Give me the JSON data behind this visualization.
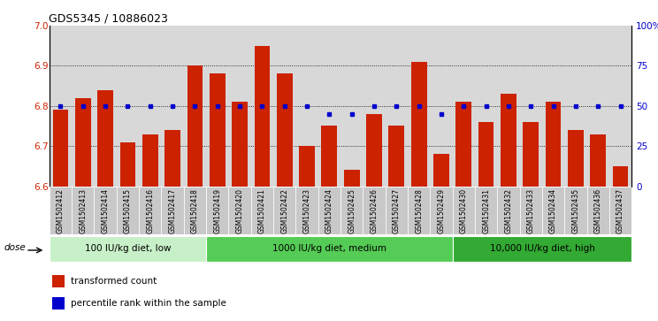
{
  "title": "GDS5345 / 10886023",
  "samples": [
    "GSM1502412",
    "GSM1502413",
    "GSM1502414",
    "GSM1502415",
    "GSM1502416",
    "GSM1502417",
    "GSM1502418",
    "GSM1502419",
    "GSM1502420",
    "GSM1502421",
    "GSM1502422",
    "GSM1502423",
    "GSM1502424",
    "GSM1502425",
    "GSM1502426",
    "GSM1502427",
    "GSM1502428",
    "GSM1502429",
    "GSM1502430",
    "GSM1502431",
    "GSM1502432",
    "GSM1502433",
    "GSM1502434",
    "GSM1502435",
    "GSM1502436",
    "GSM1502437"
  ],
  "bar_values": [
    6.79,
    6.82,
    6.84,
    6.71,
    6.73,
    6.74,
    6.9,
    6.88,
    6.81,
    6.95,
    6.88,
    6.7,
    6.75,
    6.64,
    6.78,
    6.75,
    6.91,
    6.68,
    6.81,
    6.76,
    6.83,
    6.76,
    6.81,
    6.74,
    6.73,
    6.65
  ],
  "percentile_values": [
    50,
    50,
    50,
    50,
    50,
    50,
    50,
    50,
    50,
    50,
    50,
    50,
    45,
    45,
    50,
    50,
    50,
    45,
    50,
    50,
    50,
    50,
    50,
    50,
    50,
    50
  ],
  "groups": [
    {
      "label": "100 IU/kg diet, low",
      "start": 0,
      "end": 6,
      "color": "#c8f0c8"
    },
    {
      "label": "1000 IU/kg diet, medium",
      "start": 7,
      "end": 17,
      "color": "#66dd66"
    },
    {
      "label": "10,000 IU/kg diet, high",
      "start": 18,
      "end": 25,
      "color": "#33bb33"
    }
  ],
  "bar_color": "#cc2200",
  "dot_color": "#0000cc",
  "ylim_left": [
    6.6,
    7.0
  ],
  "ylim_right": [
    0,
    100
  ],
  "yticks_left": [
    6.6,
    6.7,
    6.8,
    6.9,
    7.0
  ],
  "yticks_right": [
    0,
    25,
    50,
    75,
    100
  ],
  "ytick_labels_right": [
    "0",
    "25",
    "50",
    "75",
    "100%"
  ],
  "grid_values": [
    6.7,
    6.8,
    6.9
  ],
  "dose_label": "dose",
  "legend_items": [
    {
      "color": "#cc2200",
      "label": "transformed count"
    },
    {
      "color": "#0000cc",
      "label": "percentile rank within the sample"
    }
  ],
  "plot_bg_color": "#d8d8d8",
  "xtick_bg_color": "#c8c8c8"
}
